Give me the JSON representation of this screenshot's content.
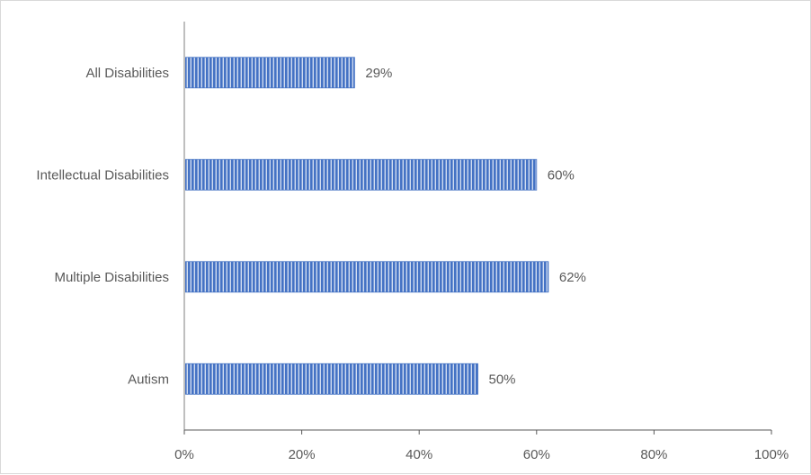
{
  "chart_data": {
    "type": "bar",
    "orientation": "horizontal",
    "title": "",
    "xlabel": "",
    "ylabel": "",
    "categories": [
      "All Disabilities",
      "Intellectual Disabilities",
      "Multiple Disabilities",
      "Autism"
    ],
    "values": [
      29,
      60,
      62,
      50
    ],
    "data_labels": [
      "29%",
      "60%",
      "62%",
      "50%"
    ],
    "xlim": [
      0,
      100
    ],
    "x_ticks": [
      0,
      20,
      40,
      60,
      80,
      100
    ],
    "x_tick_labels": [
      "0%",
      "20%",
      "40%",
      "60%",
      "80%",
      "100%"
    ],
    "grid": false,
    "legend": "none",
    "bar_color": "#4472c4",
    "bar_stripe_color": "#ffffff"
  }
}
